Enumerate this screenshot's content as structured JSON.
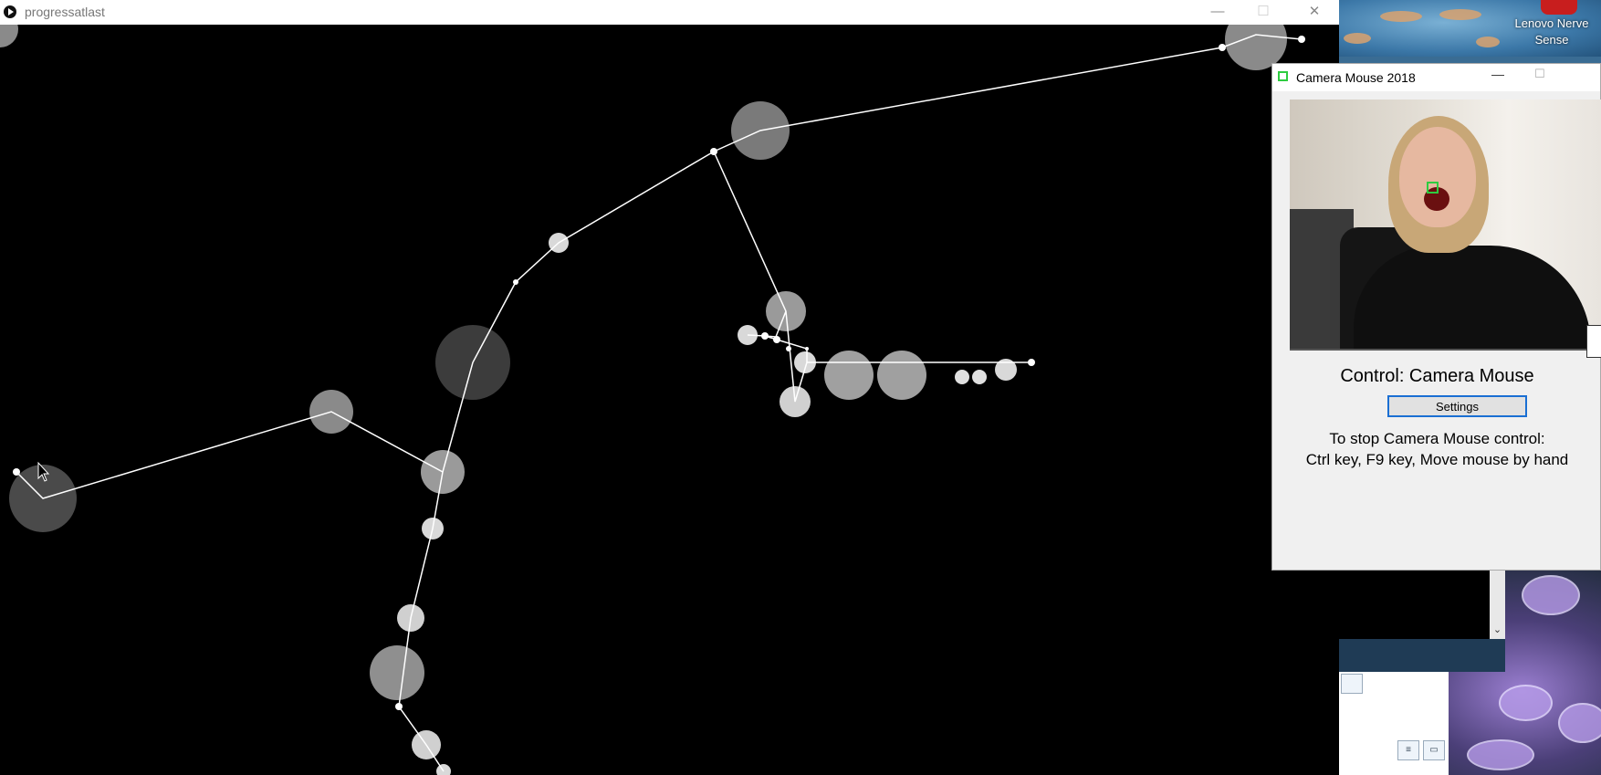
{
  "main_window": {
    "title": "progressatlast",
    "minimize": "—",
    "maximize": "☐",
    "close": "✕"
  },
  "desktop": {
    "shortcut_label": "Lenovo Nerve Sense",
    "scroll_down": "⌄"
  },
  "camera_mouse": {
    "title": "Camera Mouse 2018",
    "minimize": "—",
    "maximize": "☐",
    "control_label": "Control: Camera Mouse",
    "settings_button": "Settings",
    "stop_line1": "To stop Camera Mouse control:",
    "stop_line2": "Ctrl key, F9 key, Move mouse by hand"
  },
  "colors": {
    "line": "#ffffff",
    "circle_light": "#d9d9d9",
    "circle_mid": "#8a8a8a",
    "circle_dark": "#3c3c3c",
    "tracker": "#2ecc40",
    "settings_border": "#1a6fd3"
  }
}
